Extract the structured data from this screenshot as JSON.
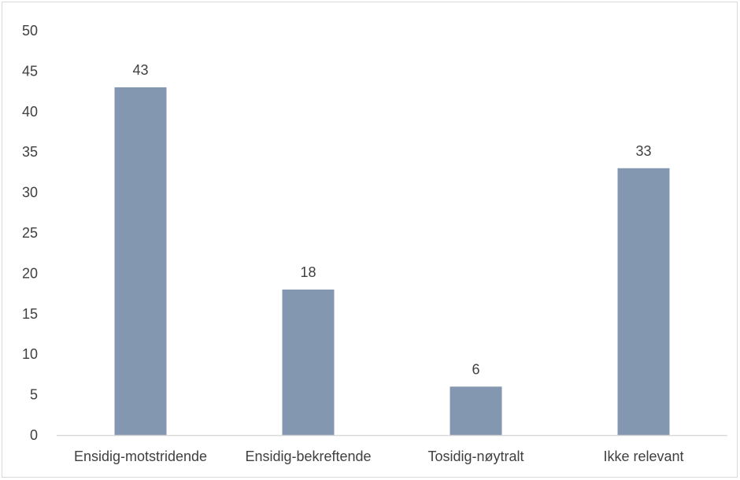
{
  "chart_data": {
    "type": "bar",
    "categories": [
      "Ensidig-motstridende",
      "Ensidig-bekreftende",
      "Tosidig-nøytralt",
      "Ikke relevant"
    ],
    "values": [
      43,
      18,
      6,
      33
    ],
    "data_labels": [
      "43",
      "18",
      "6",
      "33"
    ],
    "title": "",
    "xlabel": "",
    "ylabel": "",
    "ylim": [
      0,
      50
    ],
    "yticks": [
      0,
      5,
      10,
      15,
      20,
      25,
      30,
      35,
      40,
      45,
      50
    ],
    "ytick_labels": [
      "0",
      "5",
      "10",
      "15",
      "20",
      "25",
      "30",
      "35",
      "40",
      "45",
      "50"
    ],
    "grid": false,
    "legend": "none",
    "bar_color": "#8497b0",
    "axis_color": "#d9d9d9",
    "text_color": "#404040"
  }
}
